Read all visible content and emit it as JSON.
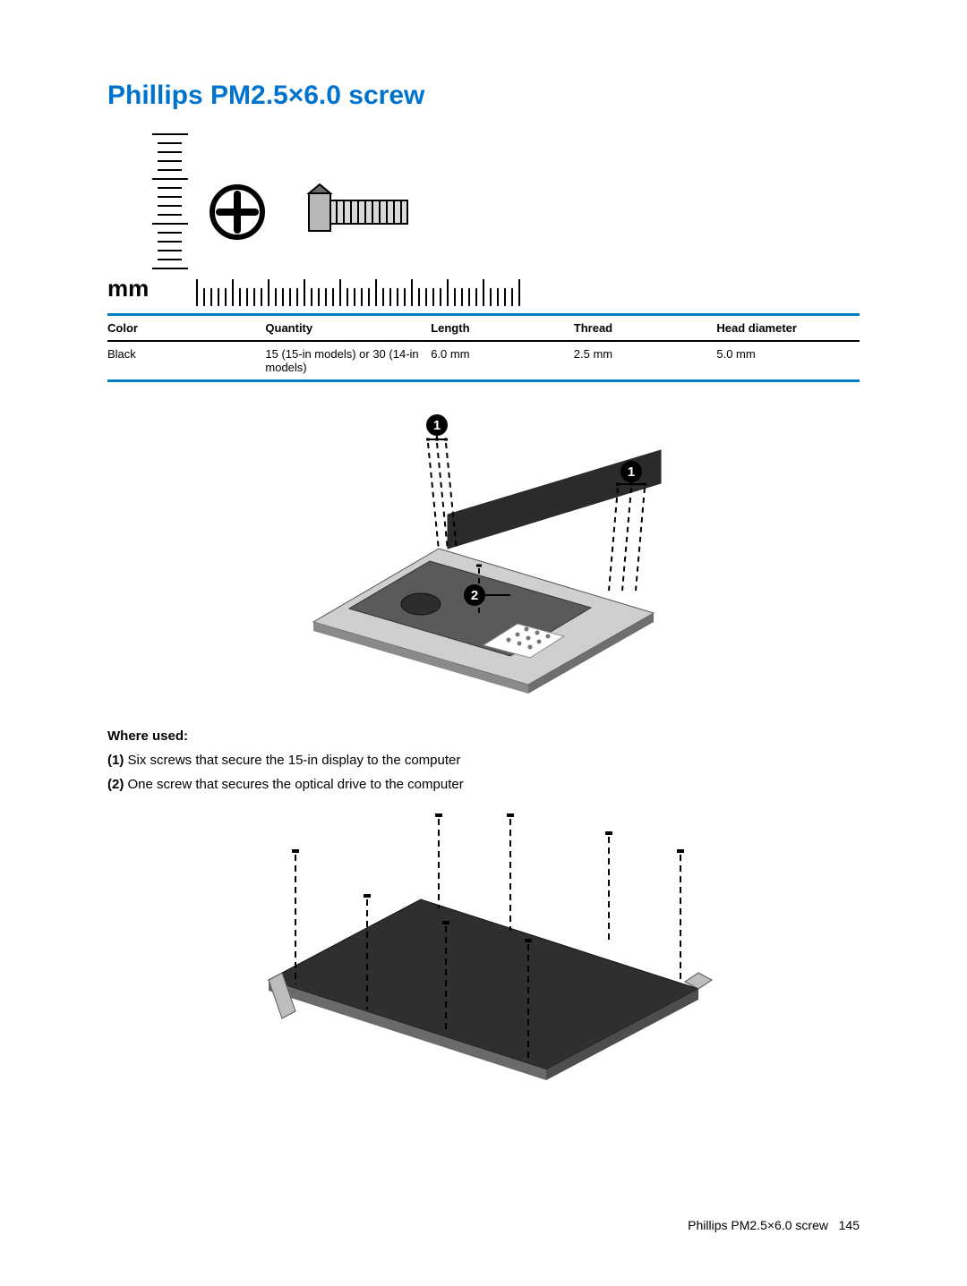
{
  "colors": {
    "title": "#0073cf",
    "table_border": "#007cc3",
    "text": "#000000",
    "callout_fill": "#000000",
    "callout_text": "#ffffff"
  },
  "title": "Phillips PM2.5×6.0 screw",
  "diagram": {
    "mm_label": "mm"
  },
  "spec_table": {
    "headers": [
      "Color",
      "Quantity",
      "Length",
      "Thread",
      "Head diameter"
    ],
    "rows": [
      [
        "Black",
        "15 (15-in models) or 30 (14-in models)",
        "6.0 mm",
        "2.5 mm",
        "5.0 mm"
      ]
    ],
    "col_widths_pct": [
      21,
      22,
      19,
      19,
      19
    ]
  },
  "illustration1": {
    "callouts": [
      "1",
      "1",
      "2"
    ]
  },
  "where_used": {
    "heading": "Where used:",
    "items": [
      {
        "num": "(1)",
        "text": " Six screws that secure the 15-in display to the computer"
      },
      {
        "num": "(2)",
        "text": " One screw that secures the optical drive to the computer"
      }
    ]
  },
  "footer": {
    "text": "Phillips PM2.5×6.0 screw",
    "page": "145"
  }
}
